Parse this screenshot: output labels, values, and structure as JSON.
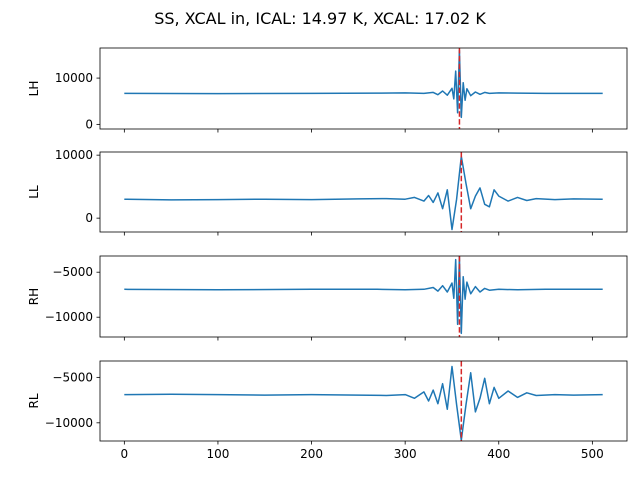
{
  "figure": {
    "title": "SS, XCAL in, ICAL: 14.97 K, XCAL: 17.02 K"
  },
  "colors": {
    "series": "#1f77b4",
    "marker": "#d62728"
  },
  "chart_data": [
    {
      "type": "line",
      "ylabel": "LH",
      "xlim": [
        -26,
        537
      ],
      "ylim": [
        -1000,
        16500
      ],
      "yticks": [
        0,
        10000
      ],
      "yticklabels": [
        "0",
        "10000"
      ],
      "xticks": [
        0,
        100,
        200,
        300,
        400,
        500
      ],
      "xticklabels": [],
      "marker_x": 358,
      "series": [
        {
          "x": [
            0,
            100,
            200,
            270,
            300,
            320,
            330,
            335,
            340,
            345,
            350,
            352,
            354,
            356,
            358,
            360,
            362,
            364,
            366,
            370,
            375,
            380,
            385,
            390,
            400,
            420,
            450,
            480,
            511
          ],
          "values": [
            6700,
            6650,
            6700,
            6750,
            6800,
            6700,
            6900,
            6400,
            7200,
            6300,
            7800,
            5500,
            11500,
            2500,
            16000,
            1500,
            9000,
            5200,
            7700,
            6200,
            7000,
            6500,
            6900,
            6700,
            6800,
            6750,
            6700,
            6700,
            6700
          ]
        }
      ]
    },
    {
      "type": "line",
      "ylabel": "LL",
      "xlim": [
        -26,
        537
      ],
      "ylim": [
        -2200,
        10500
      ],
      "yticks": [
        0,
        10000
      ],
      "yticklabels": [
        "0",
        "10000"
      ],
      "xticks": [
        0,
        100,
        200,
        300,
        400,
        500
      ],
      "xticklabels": [],
      "marker_x": 360,
      "series": [
        {
          "x": [
            0,
            50,
            100,
            150,
            200,
            250,
            280,
            300,
            310,
            320,
            325,
            330,
            335,
            340,
            345,
            350,
            355,
            360,
            365,
            370,
            375,
            380,
            385,
            390,
            395,
            400,
            410,
            420,
            430,
            440,
            460,
            480,
            511
          ],
          "values": [
            3000,
            2900,
            2950,
            3000,
            2950,
            3050,
            3100,
            3000,
            3300,
            2700,
            3600,
            2500,
            4000,
            1500,
            4500,
            -1800,
            3000,
            9800,
            5500,
            1500,
            3500,
            4800,
            2200,
            1800,
            4500,
            3500,
            2700,
            3300,
            2800,
            3100,
            2950,
            3050,
            3000
          ]
        }
      ]
    },
    {
      "type": "line",
      "ylabel": "RH",
      "xlim": [
        -26,
        537
      ],
      "ylim": [
        -12200,
        -3200
      ],
      "yticks": [
        -10000,
        -5000
      ],
      "yticklabels": [
        "−10000",
        "−5000"
      ],
      "xticks": [
        0,
        100,
        200,
        300,
        400,
        500
      ],
      "xticklabels": [],
      "marker_x": 358,
      "series": [
        {
          "x": [
            0,
            100,
            200,
            270,
            300,
            320,
            330,
            335,
            340,
            345,
            350,
            352,
            354,
            356,
            358,
            360,
            362,
            364,
            366,
            370,
            375,
            380,
            385,
            390,
            400,
            420,
            450,
            480,
            511
          ],
          "values": [
            -6900,
            -6950,
            -6900,
            -6900,
            -6950,
            -6900,
            -6700,
            -7100,
            -6500,
            -7200,
            -6200,
            -7900,
            -3600,
            -10800,
            -3300,
            -11800,
            -5500,
            -8000,
            -6100,
            -7400,
            -6600,
            -7200,
            -6800,
            -7000,
            -6900,
            -6950,
            -6900,
            -6900,
            -6900
          ]
        }
      ]
    },
    {
      "type": "line",
      "ylabel": "RL",
      "xlim": [
        -26,
        537
      ],
      "ylim": [
        -12000,
        -3200
      ],
      "yticks": [
        -10000,
        -5000
      ],
      "yticklabels": [
        "−10000",
        "−5000"
      ],
      "xticks": [
        0,
        100,
        200,
        300,
        400,
        500
      ],
      "xticklabels": [
        "0",
        "100",
        "200",
        "300",
        "400",
        "500"
      ],
      "marker_x": 360,
      "series": [
        {
          "x": [
            0,
            50,
            100,
            150,
            200,
            250,
            280,
            300,
            310,
            320,
            325,
            330,
            335,
            340,
            345,
            350,
            355,
            360,
            365,
            370,
            375,
            380,
            385,
            390,
            395,
            400,
            410,
            420,
            430,
            440,
            460,
            480,
            511
          ],
          "values": [
            -6900,
            -6850,
            -6900,
            -6950,
            -6900,
            -6950,
            -7000,
            -6900,
            -7300,
            -6600,
            -7600,
            -6400,
            -7900,
            -5700,
            -8500,
            -3800,
            -8000,
            -11900,
            -8000,
            -4500,
            -8800,
            -7300,
            -5100,
            -7900,
            -6100,
            -7300,
            -6500,
            -7200,
            -6700,
            -7000,
            -6900,
            -6950,
            -6900
          ]
        }
      ]
    }
  ]
}
